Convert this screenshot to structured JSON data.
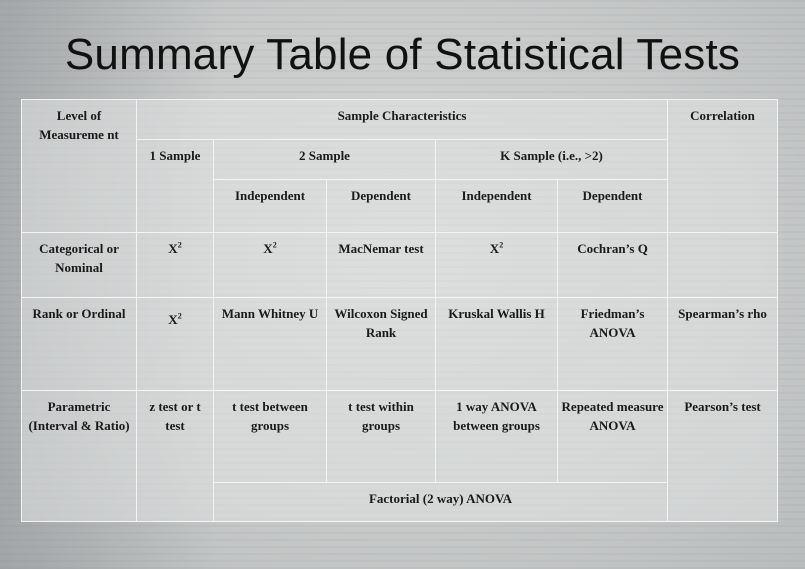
{
  "title": "Summary Table of Statistical Tests",
  "header": {
    "level": "Level of Measureme nt",
    "sample_characteristics": "Sample Characteristics",
    "correlation": "Correlation",
    "one_sample": "1 Sample",
    "two_sample": "2 Sample",
    "k_sample": "K Sample (i.e., >2)",
    "independent": "Independent",
    "dependent": "Dependent"
  },
  "rows": {
    "categorical": {
      "label": "Categorical or Nominal",
      "one_sample": "X",
      "one_sample_sup": "2",
      "two_ind": "X",
      "two_ind_sup": "2",
      "two_dep": "MacNemar test",
      "k_ind": "X",
      "k_ind_sup": "2",
      "k_dep": "Cochran’s Q",
      "correlation": ""
    },
    "rank": {
      "label": "Rank or Ordinal",
      "one_sample": "X",
      "one_sample_sup": "2",
      "two_ind": "Mann Whitney U",
      "two_dep": "Wilcoxon Signed Rank",
      "k_ind": "Kruskal Wallis H",
      "k_dep": "Friedman’s ANOVA",
      "correlation": "Spearman’s rho"
    },
    "parametric": {
      "label": "Parametric (Interval & Ratio)",
      "one_sample": "z test or t test",
      "two_ind": "t test between groups",
      "two_dep": "t test within groups",
      "k_ind": "1 way ANOVA between groups",
      "k_dep": "Repeated measure ANOVA",
      "correlation": "Pearson’s test",
      "factorial": "Factorial (2 way) ANOVA"
    }
  }
}
